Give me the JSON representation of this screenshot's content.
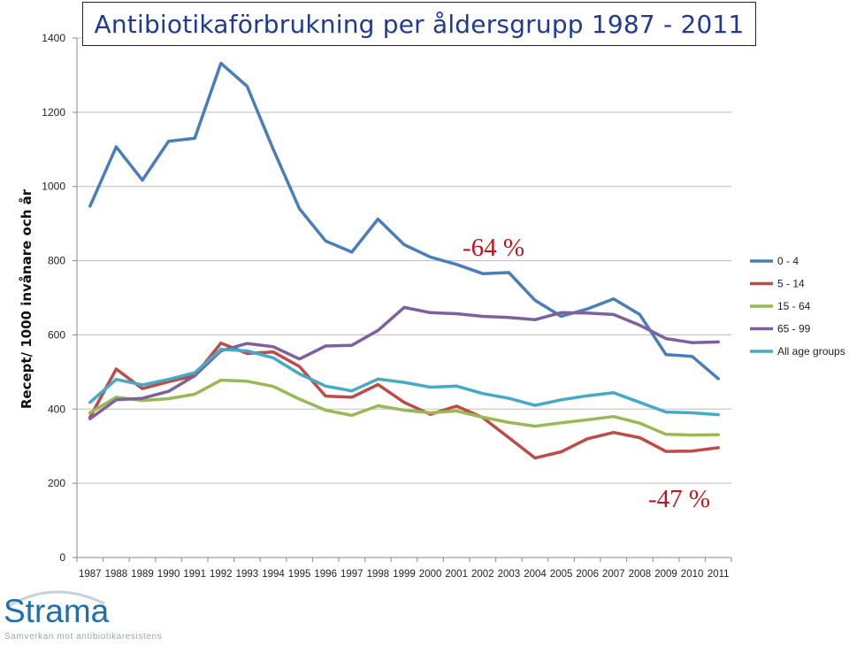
{
  "chart_data": {
    "type": "line",
    "title": "Antibiotikaförbrukning per åldersgrupp 1987 - 2011",
    "ylabel": "Recept/ 1000 invånare och år",
    "xlabel": "",
    "ylim": [
      0,
      1400
    ],
    "yticks": [
      0,
      200,
      400,
      600,
      800,
      1000,
      1200,
      1400
    ],
    "grid": true,
    "legend_position": "right",
    "categories": [
      "1987",
      "1988",
      "1989",
      "1990",
      "1991",
      "1992",
      "1993",
      "1994",
      "1995",
      "1996",
      "1997",
      "1998",
      "1999",
      "2000",
      "2001",
      "2002",
      "2003",
      "2004",
      "2005",
      "2006",
      "2007",
      "2008",
      "2009",
      "2010",
      "2011"
    ],
    "series": [
      {
        "name": "0 - 4",
        "color": "#4a7ebb",
        "values": [
          947,
          1107,
          1017,
          1122,
          1130,
          1332,
          1270,
          1100,
          940,
          853,
          823,
          912,
          843,
          810,
          790,
          765,
          768,
          693,
          650,
          670,
          697,
          655,
          547,
          542,
          482
        ]
      },
      {
        "name": "5 - 14",
        "color": "#be4b48",
        "values": [
          378,
          508,
          455,
          474,
          490,
          578,
          550,
          554,
          515,
          435,
          432,
          466,
          418,
          386,
          408,
          377,
          323,
          268,
          285,
          320,
          337,
          323,
          286,
          287,
          296
        ]
      },
      {
        "name": "15 - 64",
        "color": "#98b954",
        "values": [
          390,
          432,
          423,
          428,
          440,
          478,
          475,
          461,
          427,
          397,
          383,
          409,
          397,
          390,
          395,
          378,
          364,
          354,
          363,
          371,
          380,
          362,
          332,
          330,
          331
        ]
      },
      {
        "name": "65 - 99",
        "color": "#7d60a0",
        "values": [
          374,
          425,
          429,
          448,
          490,
          557,
          577,
          568,
          535,
          570,
          572,
          612,
          674,
          660,
          657,
          650,
          647,
          641,
          660,
          659,
          655,
          626,
          590,
          579,
          581
        ]
      },
      {
        "name": "All age groups",
        "color": "#46aac4",
        "values": [
          418,
          480,
          465,
          480,
          498,
          561,
          557,
          538,
          495,
          462,
          449,
          481,
          472,
          459,
          462,
          442,
          429,
          410,
          425,
          436,
          444,
          418,
          392,
          390,
          385
        ]
      }
    ],
    "annotations": [
      {
        "text": "-64 %",
        "color": "#c0141c"
      },
      {
        "text": "-47 %",
        "color": "#c0141c"
      }
    ]
  },
  "logo": {
    "word": "Strama",
    "tagline": "Samverkan mot antibiotikaresistens"
  }
}
